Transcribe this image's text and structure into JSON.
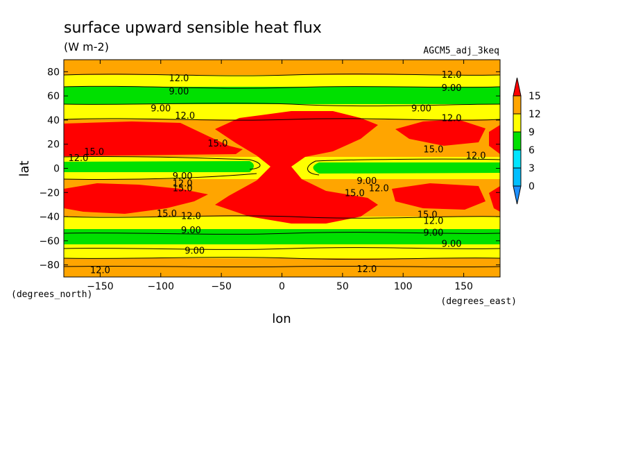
{
  "chart_data": {
    "type": "heatmap",
    "title": "surface upward sensible heat flux",
    "units": "(W m-2)",
    "dataset": "AGCM5_adj_3keq",
    "xlabel": "lon",
    "ylabel": "lat",
    "x_units": "(degrees_east)",
    "y_units": "(degrees_north)",
    "xlim": [
      -180,
      180
    ],
    "ylim": [
      -90,
      90
    ],
    "x_ticks": [
      -150,
      -100,
      -50,
      0,
      50,
      100,
      150
    ],
    "x_tick_labels": [
      "−150",
      "−100",
      "−50",
      "0",
      "50",
      "100",
      "150"
    ],
    "y_ticks": [
      -80,
      -60,
      -40,
      -20,
      0,
      20,
      40,
      60,
      80
    ],
    "y_tick_labels": [
      "−80",
      "−60",
      "−40",
      "−20",
      "0",
      "20",
      "40",
      "60",
      "80"
    ],
    "colorbar": {
      "levels": [
        0,
        3,
        6,
        9,
        12,
        15
      ],
      "labels": [
        "0",
        "3",
        "6",
        "9",
        "12",
        "15"
      ],
      "colors": [
        "#1e90ff",
        "#00bfff",
        "#00e5ff",
        "#00e000",
        "#ffff00",
        "#ffa500",
        "#ff0000"
      ],
      "extend": "both"
    },
    "contour_labels": [
      {
        "text": "12.0",
        "lon": -85,
        "lat": 75
      },
      {
        "text": "12.0",
        "lon": 140,
        "lat": 78
      },
      {
        "text": "9.00",
        "lon": -85,
        "lat": 64
      },
      {
        "text": "9.00",
        "lon": 140,
        "lat": 67
      },
      {
        "text": "9.00",
        "lon": -100,
        "lat": 50
      },
      {
        "text": "9.00",
        "lon": 115,
        "lat": 50
      },
      {
        "text": "12.0",
        "lon": -80,
        "lat": 44
      },
      {
        "text": "12.0",
        "lon": 140,
        "lat": 42
      },
      {
        "text": "15.0",
        "lon": -53,
        "lat": 21
      },
      {
        "text": "15.0",
        "lon": 125,
        "lat": 16
      },
      {
        "text": "12.0",
        "lon": -168,
        "lat": 9
      },
      {
        "text": "15.0",
        "lon": -155,
        "lat": 14
      },
      {
        "text": "12.0",
        "lon": 160,
        "lat": 11
      },
      {
        "text": "9.00",
        "lon": -82,
        "lat": -6
      },
      {
        "text": "12.0",
        "lon": -82,
        "lat": -12
      },
      {
        "text": "15.0",
        "lon": -82,
        "lat": -16
      },
      {
        "text": "9.00",
        "lon": 70,
        "lat": -10
      },
      {
        "text": "12.0",
        "lon": 80,
        "lat": -16
      },
      {
        "text": "15.0",
        "lon": 60,
        "lat": -20
      },
      {
        "text": "15.0",
        "lon": -95,
        "lat": -37
      },
      {
        "text": "12.0",
        "lon": -75,
        "lat": -39
      },
      {
        "text": "15.0",
        "lon": 120,
        "lat": -38
      },
      {
        "text": "12.0",
        "lon": 125,
        "lat": -43
      },
      {
        "text": "9.00",
        "lon": -75,
        "lat": -51
      },
      {
        "text": "9.00",
        "lon": 125,
        "lat": -53
      },
      {
        "text": "9.00",
        "lon": 140,
        "lat": -62
      },
      {
        "text": "9.00",
        "lon": -72,
        "lat": -68
      },
      {
        "text": "12.0",
        "lon": -150,
        "lat": -84
      },
      {
        "text": "12.0",
        "lon": 70,
        "lat": -83
      }
    ]
  }
}
